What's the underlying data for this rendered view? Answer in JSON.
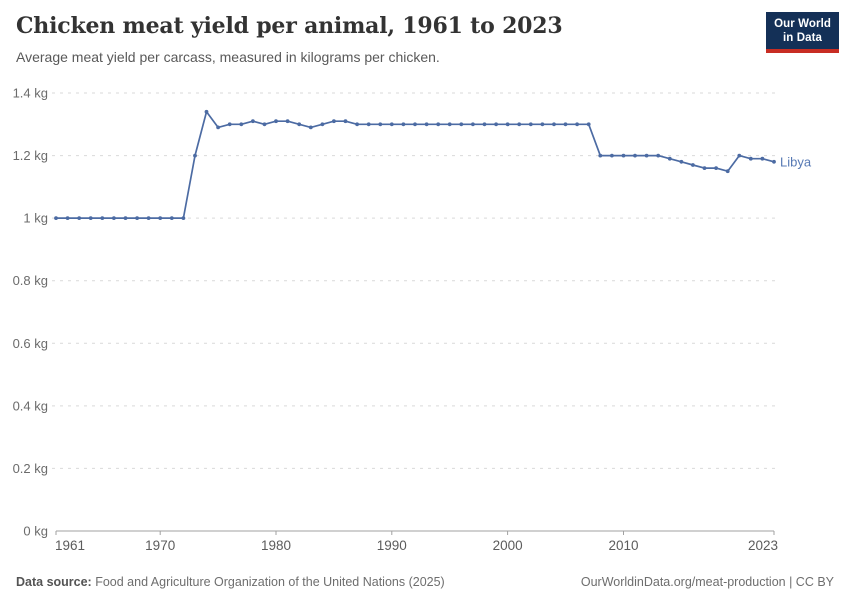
{
  "header": {
    "title": "Chicken meat yield per animal, 1961 to 2023",
    "subtitle": "Average meat yield per carcass, measured in kilograms per chicken.",
    "logo": {
      "line1": "Our World",
      "line2": "in Data",
      "bg_color": "#143057",
      "accent_color": "#c82d23"
    }
  },
  "chart_data": {
    "type": "line",
    "title": "Chicken meat yield per animal, 1961 to 2023",
    "subtitle": "Average meat yield per carcass, measured in kilograms per chicken.",
    "unit": "kg",
    "xlabel": "",
    "ylabel": "",
    "xlim": [
      1961,
      2023
    ],
    "ylim": [
      0,
      1.4
    ],
    "grid": true,
    "legend_position": "end-of-line",
    "x_ticks": [
      1961,
      1970,
      1980,
      1990,
      2000,
      2010,
      2023
    ],
    "y_ticks": [
      {
        "value": 1.4,
        "label": "1.4 kg"
      },
      {
        "value": 1.2,
        "label": "1.2 kg"
      },
      {
        "value": 1.0,
        "label": "1 kg"
      },
      {
        "value": 0.8,
        "label": "0.8 kg"
      },
      {
        "value": 0.6,
        "label": "0.6 kg"
      },
      {
        "value": 0.4,
        "label": "0.4 kg"
      },
      {
        "value": 0.2,
        "label": "0.2 kg"
      },
      {
        "value": 0.0,
        "label": "0 kg"
      }
    ],
    "entity_label_color": "#5779b4",
    "series": [
      {
        "name": "Libya",
        "color": "#4c6ba3",
        "x": [
          1961,
          1962,
          1963,
          1964,
          1965,
          1966,
          1967,
          1968,
          1969,
          1970,
          1971,
          1972,
          1973,
          1974,
          1975,
          1976,
          1977,
          1978,
          1979,
          1980,
          1981,
          1982,
          1983,
          1984,
          1985,
          1986,
          1987,
          1988,
          1989,
          1990,
          1991,
          1992,
          1993,
          1994,
          1995,
          1996,
          1997,
          1998,
          1999,
          2000,
          2001,
          2002,
          2003,
          2004,
          2005,
          2006,
          2007,
          2008,
          2009,
          2010,
          2011,
          2012,
          2013,
          2014,
          2015,
          2016,
          2017,
          2018,
          2019,
          2020,
          2021,
          2022,
          2023
        ],
        "values": [
          1.0,
          1.0,
          1.0,
          1.0,
          1.0,
          1.0,
          1.0,
          1.0,
          1.0,
          1.0,
          1.0,
          1.0,
          1.2,
          1.34,
          1.29,
          1.3,
          1.3,
          1.31,
          1.3,
          1.31,
          1.31,
          1.3,
          1.29,
          1.3,
          1.31,
          1.31,
          1.3,
          1.3,
          1.3,
          1.3,
          1.3,
          1.3,
          1.3,
          1.3,
          1.3,
          1.3,
          1.3,
          1.3,
          1.3,
          1.3,
          1.3,
          1.3,
          1.3,
          1.3,
          1.3,
          1.3,
          1.3,
          1.2,
          1.2,
          1.2,
          1.2,
          1.2,
          1.2,
          1.19,
          1.18,
          1.17,
          1.16,
          1.16,
          1.15,
          1.2,
          1.19,
          1.19,
          1.18
        ]
      }
    ]
  },
  "footer": {
    "datasource_label": "Data source:",
    "datasource_text": " Food and Agriculture Organization of the United Nations (2025)",
    "credit": "OurWorldinData.org/meat-production | CC BY"
  }
}
